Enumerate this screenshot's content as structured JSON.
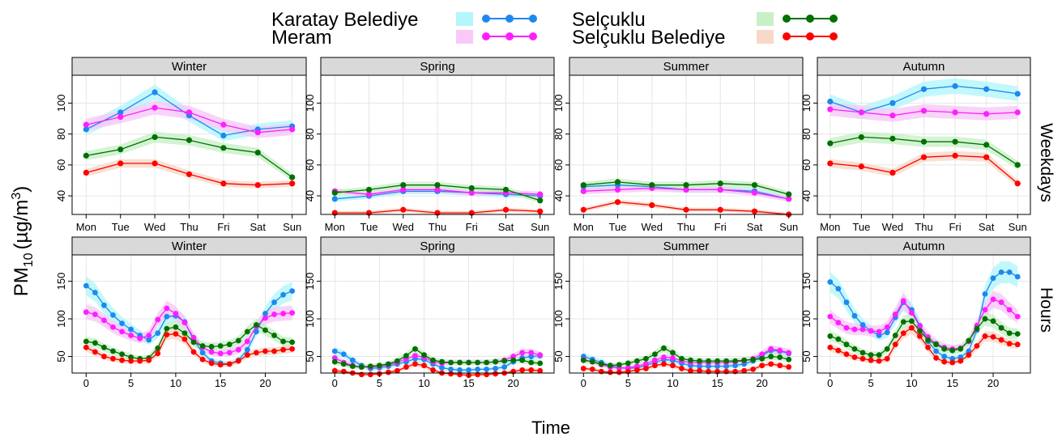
{
  "page": {
    "y_axis_label_main": "PM",
    "y_axis_label_sub": "10",
    "y_axis_label_unit": "(µg/m",
    "y_axis_label_sup": "3",
    "y_axis_label_close": ")",
    "x_axis_label": "Time",
    "row_strip_weekdays": "Weekdays",
    "row_strip_hours": "Hours"
  },
  "legend": [
    {
      "name": "Karatay Belediye",
      "color": "#1e88f0",
      "band": "#b3f6fb"
    },
    {
      "name": "Meram",
      "color": "#ff1eff",
      "band": "#f8c8f8"
    },
    {
      "name": "Selçuklu",
      "color": "#007000",
      "band": "#c8f0c8"
    },
    {
      "name": "Selçuklu Belediye",
      "color": "#ff0000",
      "band": "#f8d8c8"
    }
  ],
  "chart_data": [
    {
      "type": "line",
      "panel": "Winter",
      "row": "Weekdays",
      "categories": [
        "Mon",
        "Tue",
        "Wed",
        "Thu",
        "Fri",
        "Sat",
        "Sun"
      ],
      "ylim": [
        28,
        118
      ],
      "yticks": [
        40,
        60,
        80,
        100
      ],
      "grid": true,
      "series": [
        {
          "name": "Karatay Belediye",
          "values": [
            83,
            94,
            107,
            92,
            79,
            83,
            85
          ]
        },
        {
          "name": "Meram",
          "values": [
            86,
            91,
            97,
            94,
            86,
            81,
            83
          ]
        },
        {
          "name": "Selçuklu",
          "values": [
            66,
            70,
            78,
            76,
            71,
            68,
            52
          ]
        },
        {
          "name": "Selçuklu Belediye",
          "values": [
            55,
            61,
            61,
            54,
            48,
            47,
            48
          ]
        }
      ]
    },
    {
      "type": "line",
      "panel": "Spring",
      "row": "Weekdays",
      "categories": [
        "Mon",
        "Tue",
        "Wed",
        "Thu",
        "Fri",
        "Sat",
        "Sun"
      ],
      "ylim": [
        28,
        118
      ],
      "yticks": [
        40,
        60,
        80,
        100
      ],
      "grid": true,
      "series": [
        {
          "name": "Karatay Belediye",
          "values": [
            38,
            40,
            43,
            43,
            42,
            41,
            40
          ]
        },
        {
          "name": "Meram",
          "values": [
            43,
            41,
            44,
            44,
            42,
            42,
            41
          ]
        },
        {
          "name": "Selçuklu",
          "values": [
            42,
            44,
            47,
            47,
            45,
            44,
            37
          ]
        },
        {
          "name": "Selçuklu Belediye",
          "values": [
            29,
            29,
            31,
            29,
            29,
            31,
            30
          ]
        }
      ]
    },
    {
      "type": "line",
      "panel": "Summer",
      "row": "Weekdays",
      "categories": [
        "Mon",
        "Tue",
        "Wed",
        "Thu",
        "Fri",
        "Sat",
        "Sun"
      ],
      "ylim": [
        28,
        118
      ],
      "yticks": [
        40,
        60,
        80,
        100
      ],
      "grid": true,
      "series": [
        {
          "name": "Karatay Belediye",
          "values": [
            46,
            47,
            46,
            44,
            44,
            43,
            38
          ]
        },
        {
          "name": "Meram",
          "values": [
            43,
            44,
            45,
            44,
            44,
            42,
            38
          ]
        },
        {
          "name": "Selçuklu",
          "values": [
            47,
            49,
            47,
            47,
            48,
            47,
            41
          ]
        },
        {
          "name": "Selçuklu Belediye",
          "values": [
            31,
            36,
            34,
            31,
            31,
            30,
            28
          ]
        }
      ]
    },
    {
      "type": "line",
      "panel": "Autumn",
      "row": "Weekdays",
      "categories": [
        "Mon",
        "Tue",
        "Wed",
        "Thu",
        "Fri",
        "Sat",
        "Sun"
      ],
      "ylim": [
        28,
        118
      ],
      "yticks": [
        40,
        60,
        80,
        100
      ],
      "grid": true,
      "series": [
        {
          "name": "Karatay Belediye",
          "values": [
            101,
            94,
            100,
            109,
            111,
            109,
            106
          ]
        },
        {
          "name": "Meram",
          "values": [
            96,
            94,
            92,
            95,
            94,
            93,
            94
          ]
        },
        {
          "name": "Selçuklu",
          "values": [
            74,
            78,
            77,
            75,
            75,
            73,
            60
          ]
        },
        {
          "name": "Selçuklu Belediye",
          "values": [
            61,
            59,
            55,
            65,
            66,
            65,
            48
          ]
        }
      ]
    },
    {
      "type": "line",
      "panel": "Winter",
      "row": "Hours",
      "x": [
        0,
        1,
        2,
        3,
        4,
        5,
        6,
        7,
        8,
        9,
        10,
        11,
        12,
        13,
        14,
        15,
        16,
        17,
        18,
        19,
        20,
        21,
        22,
        23
      ],
      "xticks": [
        0,
        5,
        10,
        15,
        20
      ],
      "ylim": [
        28,
        185
      ],
      "yticks": [
        50,
        100,
        150
      ],
      "grid": true,
      "series": [
        {
          "name": "Karatay Belediye",
          "values": [
            144,
            135,
            118,
            105,
            94,
            86,
            78,
            72,
            81,
            103,
            104,
            96,
            72,
            55,
            44,
            41,
            40,
            45,
            59,
            83,
            107,
            122,
            132,
            137
          ]
        },
        {
          "name": "Meram",
          "values": [
            109,
            106,
            98,
            89,
            83,
            78,
            74,
            78,
            99,
            114,
            107,
            95,
            75,
            62,
            56,
            54,
            55,
            59,
            70,
            90,
            101,
            106,
            107,
            108
          ]
        },
        {
          "name": "Selçuklu",
          "values": [
            70,
            68,
            62,
            57,
            53,
            49,
            47,
            48,
            61,
            87,
            89,
            81,
            69,
            64,
            63,
            64,
            66,
            71,
            83,
            92,
            85,
            78,
            70,
            69
          ]
        },
        {
          "name": "Selçuklu Belediye",
          "values": [
            62,
            56,
            50,
            47,
            45,
            44,
            44,
            45,
            54,
            79,
            80,
            73,
            56,
            46,
            41,
            39,
            40,
            44,
            52,
            55,
            57,
            57,
            59,
            60
          ]
        }
      ]
    },
    {
      "type": "line",
      "panel": "Spring",
      "row": "Hours",
      "x": [
        0,
        1,
        2,
        3,
        4,
        5,
        6,
        7,
        8,
        9,
        10,
        11,
        12,
        13,
        14,
        15,
        16,
        17,
        18,
        19,
        20,
        21,
        22,
        23
      ],
      "xticks": [
        0,
        5,
        10,
        15,
        20
      ],
      "ylim": [
        28,
        185
      ],
      "yticks": [
        50,
        100,
        150
      ],
      "grid": true,
      "series": [
        {
          "name": "Karatay Belediye",
          "values": [
            57,
            53,
            45,
            38,
            34,
            35,
            37,
            40,
            43,
            47,
            46,
            40,
            35,
            33,
            32,
            32,
            33,
            33,
            34,
            36,
            43,
            48,
            50,
            51
          ]
        },
        {
          "name": "Meram",
          "values": [
            48,
            42,
            38,
            36,
            36,
            37,
            39,
            42,
            47,
            51,
            49,
            43,
            41,
            42,
            42,
            42,
            42,
            42,
            43,
            45,
            50,
            55,
            55,
            52
          ]
        },
        {
          "name": "Selçuklu",
          "values": [
            43,
            40,
            37,
            36,
            37,
            38,
            40,
            44,
            51,
            60,
            52,
            45,
            43,
            42,
            42,
            42,
            42,
            42,
            43,
            44,
            45,
            45,
            42,
            41
          ]
        },
        {
          "name": "Selçuklu Belediye",
          "values": [
            31,
            30,
            28,
            26,
            26,
            27,
            29,
            31,
            36,
            40,
            38,
            32,
            28,
            27,
            26,
            25,
            26,
            26,
            27,
            28,
            30,
            32,
            32,
            31
          ]
        }
      ]
    },
    {
      "type": "line",
      "panel": "Summer",
      "row": "Hours",
      "x": [
        0,
        1,
        2,
        3,
        4,
        5,
        6,
        7,
        8,
        9,
        10,
        11,
        12,
        13,
        14,
        15,
        16,
        17,
        18,
        19,
        20,
        21,
        22,
        23
      ],
      "xticks": [
        0,
        5,
        10,
        15,
        20
      ],
      "ylim": [
        28,
        185
      ],
      "yticks": [
        50,
        100,
        150
      ],
      "grid": true,
      "series": [
        {
          "name": "Karatay Belediye",
          "values": [
            50,
            46,
            42,
            38,
            35,
            34,
            35,
            38,
            42,
            46,
            45,
            41,
            38,
            37,
            37,
            37,
            37,
            38,
            40,
            44,
            51,
            58,
            57,
            54
          ]
        },
        {
          "name": "Meram",
          "values": [
            46,
            43,
            39,
            36,
            35,
            35,
            37,
            40,
            45,
            49,
            48,
            44,
            42,
            42,
            42,
            42,
            42,
            43,
            44,
            47,
            53,
            60,
            58,
            55
          ]
        },
        {
          "name": "Selçuklu",
          "values": [
            45,
            43,
            40,
            38,
            39,
            41,
            44,
            47,
            53,
            61,
            55,
            47,
            45,
            44,
            44,
            44,
            44,
            44,
            45,
            46,
            47,
            50,
            49,
            46
          ]
        },
        {
          "name": "Selçuklu Belediye",
          "values": [
            34,
            33,
            30,
            29,
            29,
            30,
            32,
            34,
            38,
            40,
            38,
            34,
            31,
            31,
            30,
            30,
            30,
            30,
            31,
            33,
            38,
            40,
            38,
            36
          ]
        }
      ]
    },
    {
      "type": "line",
      "panel": "Autumn",
      "row": "Hours",
      "x": [
        0,
        1,
        2,
        3,
        4,
        5,
        6,
        7,
        8,
        9,
        10,
        11,
        12,
        13,
        14,
        15,
        16,
        17,
        18,
        19,
        20,
        21,
        22,
        23
      ],
      "xticks": [
        0,
        5,
        10,
        15,
        20
      ],
      "ylim": [
        28,
        185
      ],
      "yticks": [
        50,
        100,
        150
      ],
      "grid": true,
      "series": [
        {
          "name": "Karatay Belediye",
          "values": [
            149,
            140,
            122,
            104,
            92,
            84,
            78,
            82,
            102,
            122,
            112,
            91,
            70,
            57,
            50,
            47,
            49,
            57,
            85,
            133,
            154,
            162,
            162,
            156
          ]
        },
        {
          "name": "Meram",
          "values": [
            103,
            95,
            88,
            86,
            86,
            84,
            83,
            89,
            106,
            124,
            108,
            90,
            76,
            67,
            62,
            60,
            61,
            70,
            91,
            112,
            126,
            122,
            112,
            103
          ]
        },
        {
          "name": "Selçuklu",
          "values": [
            77,
            73,
            66,
            60,
            55,
            52,
            52,
            60,
            78,
            96,
            97,
            84,
            72,
            66,
            60,
            58,
            60,
            71,
            87,
            100,
            97,
            88,
            81,
            80
          ]
        },
        {
          "name": "Selçuklu Belediye",
          "values": [
            62,
            58,
            53,
            49,
            47,
            45,
            44,
            47,
            66,
            81,
            88,
            77,
            62,
            48,
            43,
            42,
            44,
            52,
            64,
            77,
            76,
            72,
            67,
            66
          ]
        }
      ]
    }
  ]
}
